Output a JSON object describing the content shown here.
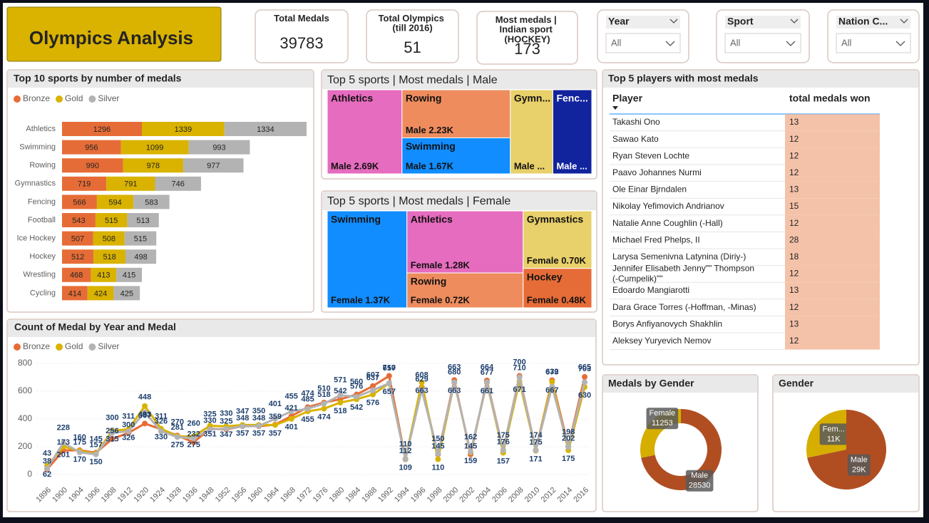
{
  "title": "Olympics Analysis",
  "cards": [
    {
      "label": "Total Medals",
      "value": 39783
    },
    {
      "label": "Total Olympics (till 2016)",
      "value": 51
    },
    {
      "label": "Most medals | Indian sport (HOCKEY)",
      "value": 173
    }
  ],
  "slicers": [
    {
      "label": "Year",
      "value": "All"
    },
    {
      "label": "Sport",
      "value": "All"
    },
    {
      "label": "Nation C...",
      "value": "All"
    }
  ],
  "table": {
    "title": "Top 5 players with most medals",
    "columns": [
      "Player",
      "total medals won"
    ],
    "rows": [
      [
        "Takashi Ono",
        13
      ],
      [
        "Sawao Kato",
        12
      ],
      [
        "Ryan Steven Lochte",
        12
      ],
      [
        "Paavo Johannes Nurmi",
        12
      ],
      [
        "Ole Einar Bjrndalen",
        13
      ],
      [
        "Nikolay Yefimovich Andrianov",
        15
      ],
      [
        "Natalie Anne Coughlin (-Hall)",
        12
      ],
      [
        "Michael Fred Phelps, II",
        28
      ],
      [
        "Larysa Semenivna Latynina (Diriy-)",
        18
      ],
      [
        "Jennifer Elisabeth Jenny\"\" Thompson (-Cumpelik)\"\"",
        12
      ],
      [
        "Edoardo Mangiarotti",
        13
      ],
      [
        "Dara Grace Torres (-Hoffman, -Minas)",
        12
      ],
      [
        "Borys Anfiyanovych Shakhlin",
        13
      ],
      [
        "Aleksey Yuryevich Nemov",
        12
      ]
    ]
  },
  "chart_data": [
    {
      "type": "hbar_stacked",
      "title": "Top 10 sports by number of medals",
      "categories": [
        "Athletics",
        "Swimming",
        "Rowing",
        "Gymnastics",
        "Fencing",
        "Football",
        "Ice Hockey",
        "Hockey",
        "Wrestling",
        "Cycling"
      ],
      "series": [
        {
          "name": "Bronze",
          "color": "#e66c37",
          "values": [
            1296,
            956,
            990,
            719,
            566,
            543,
            507,
            512,
            468,
            414
          ]
        },
        {
          "name": "Gold",
          "color": "#d9b300",
          "values": [
            1339,
            1099,
            978,
            791,
            594,
            515,
            508,
            518,
            413,
            424
          ]
        },
        {
          "name": "Silver",
          "color": "#b3b3b3",
          "values": [
            1334,
            993,
            977,
            746,
            583,
            513,
            515,
            498,
            415,
            425
          ]
        }
      ]
    },
    {
      "type": "treemap",
      "title": "Top 5 sports | Most medals | Male",
      "categories": [
        "Athletics",
        "Rowing",
        "Swimming",
        "Gymn...",
        "Fenc..."
      ],
      "values": [
        2690,
        2230,
        1670,
        1530,
        1400
      ],
      "value_labels": [
        "Male 2.69K",
        "Male 2.23K",
        "Male 1.67K",
        "Male ...",
        "Male ..."
      ],
      "colors": [
        "#e66cbf",
        "#ee8c5e",
        "#118dff",
        "#e8d06a",
        "#12239e"
      ]
    },
    {
      "type": "treemap",
      "title": "Top 5 sports | Most medals | Female",
      "categories": [
        "Swimming",
        "Athletics",
        "Rowing",
        "Gymnastics",
        "Hockey"
      ],
      "values": [
        1370,
        1280,
        720,
        700,
        480
      ],
      "value_labels": [
        "Female 1.37K",
        "Female 1.28K",
        "Female 0.72K",
        "Female 0.70K",
        "Female 0.48K"
      ],
      "colors": [
        "#118dff",
        "#e66cbf",
        "#ee8c5e",
        "#e8d06a",
        "#e66c37"
      ]
    },
    {
      "type": "line",
      "title": "Count of Medal by Year and Medal",
      "categories": [
        "1896",
        "1900",
        "1904",
        "1906",
        "1908",
        "1912",
        "1920",
        "1924",
        "1928",
        "1936",
        "1948",
        "1952",
        "1956",
        "1960",
        "1964",
        "1968",
        "1972",
        "1976",
        "1980",
        "1984",
        "1988",
        "1992",
        "1994",
        "1996",
        "1998",
        "2000",
        "2002",
        "2004",
        "2006",
        "2008",
        "2010",
        "2012",
        "2014",
        "2016"
      ],
      "series": [
        {
          "name": "Bronze",
          "color": "#e66c37",
          "values": [
            38,
            173,
            175,
            157,
            256,
            300,
            367,
            326,
            281,
            232,
            330,
            325,
            348,
            348,
            359,
            421,
            485,
            518,
            542,
            576,
            637,
            710,
            112,
            629,
            145,
            680,
            145,
            677,
            176,
            710,
            175,
            679,
            202,
            703
          ]
        },
        {
          "name": "Gold",
          "color": "#d9b300",
          "values": [
            62,
            201,
            170,
            150,
            315,
            326,
            493,
            330,
            275,
            275,
            351,
            347,
            357,
            357,
            357,
            401,
            455,
            474,
            518,
            542,
            576,
            657,
            109,
            663,
            110,
            663,
            159,
            661,
            157,
            671,
            171,
            667,
            175,
            630
          ]
        },
        {
          "name": "Silver",
          "color": "#b3b3b3",
          "values": [
            43,
            228,
            160,
            145,
            300,
            311,
            448,
            311,
            270,
            260,
            325,
            330,
            347,
            350,
            401,
            455,
            474,
            510,
            571,
            560,
            607,
            657,
            110,
            608,
            150,
            663,
            162,
            664,
            175,
            700,
            174,
            632,
            198,
            665
          ]
        }
      ],
      "ylim": [
        0,
        800
      ],
      "yticks": [
        0,
        200,
        400,
        600,
        800
      ],
      "grid": true
    },
    {
      "type": "donut",
      "title": "Medals by Gender",
      "categories": [
        "Female",
        "Male"
      ],
      "values": [
        11253,
        28530
      ],
      "colors": [
        "#d6ae00",
        "#b04e22"
      ]
    },
    {
      "type": "pie",
      "title": "Gender",
      "categories": [
        "Fem...",
        "Male"
      ],
      "values": [
        11253,
        28530
      ],
      "value_labels": [
        "11K",
        "29K"
      ],
      "colors": [
        "#d6ae00",
        "#b04e22"
      ]
    }
  ]
}
